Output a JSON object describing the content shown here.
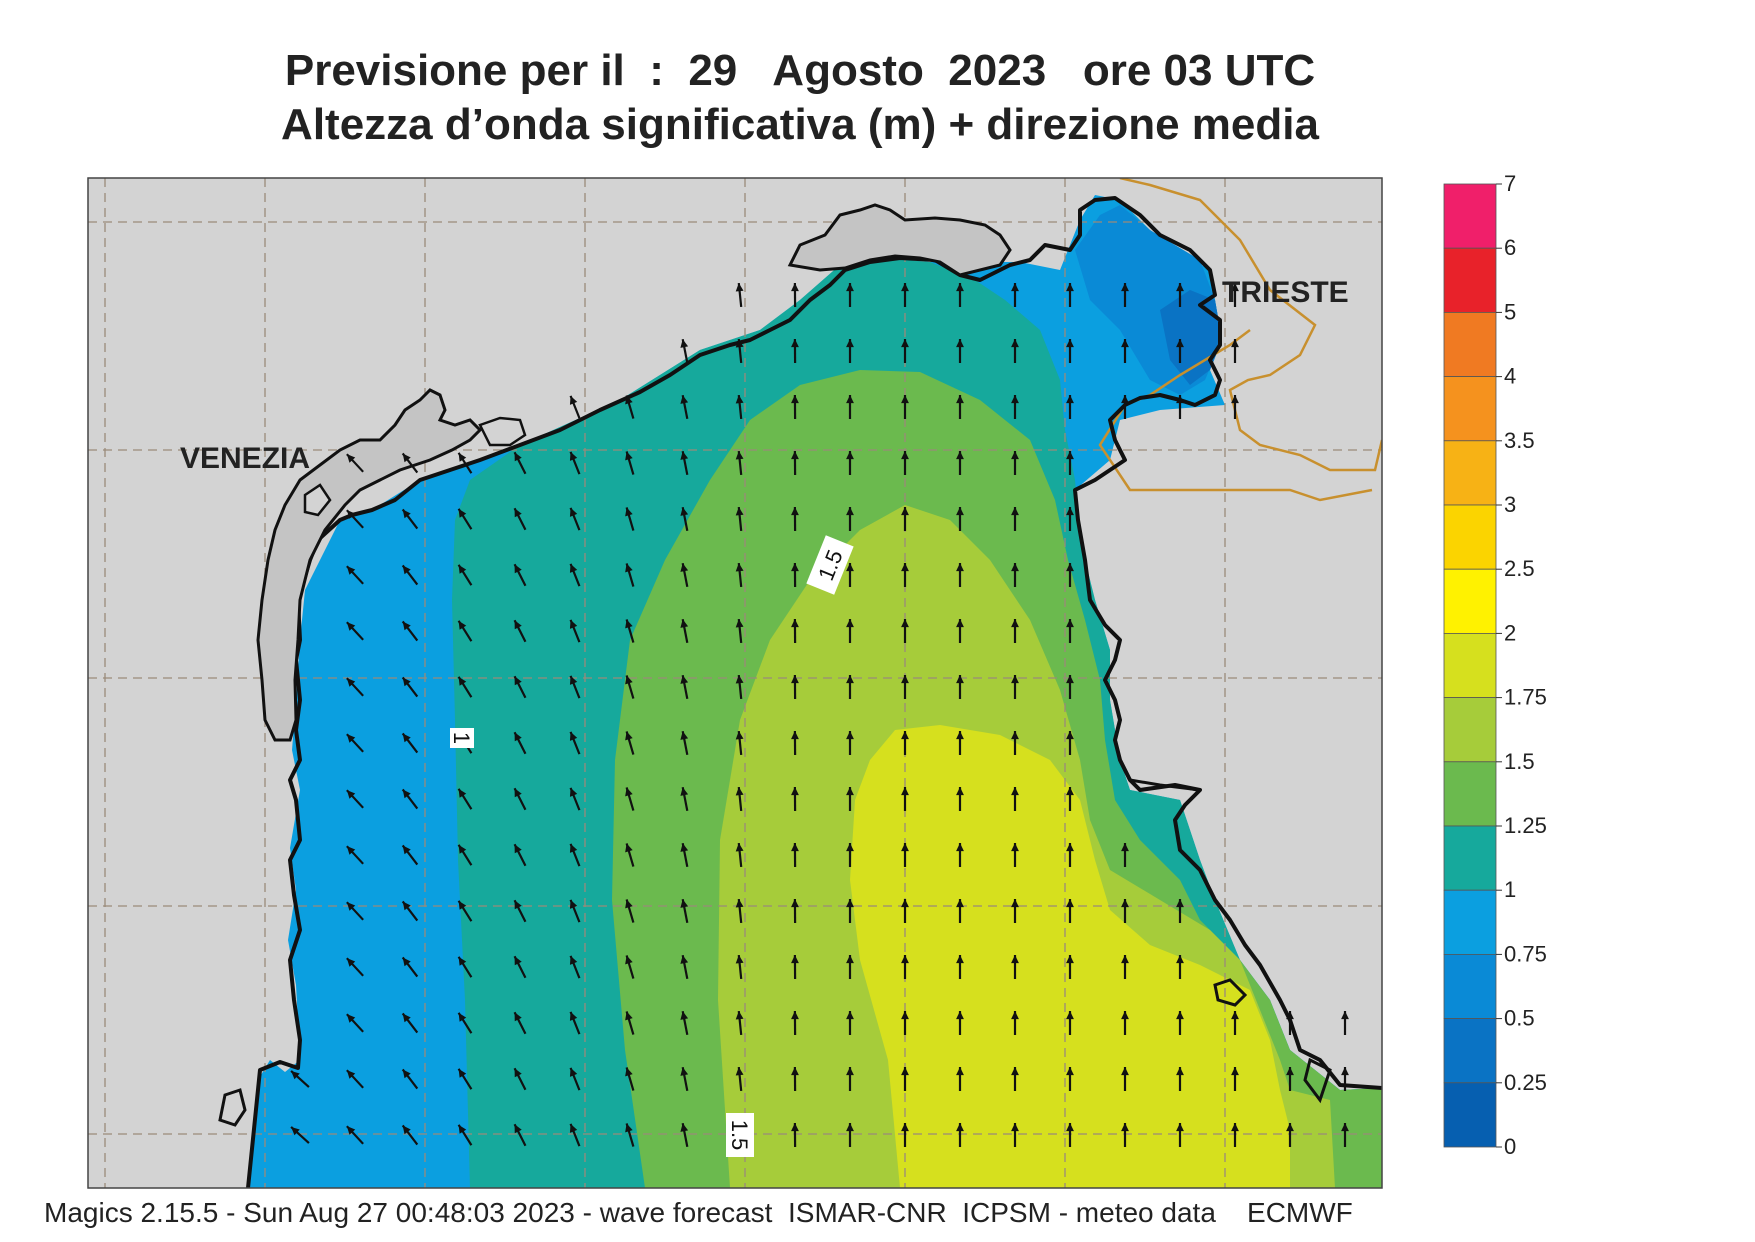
{
  "title": {
    "line1": "Previsione per il  :  29   Agosto  2023   ore 03 UTC",
    "line2": "Altezza d’onda significativa (m) + direzione media"
  },
  "cities": {
    "venezia": "VENEZIA",
    "trieste": "TRIESTE"
  },
  "contour_labels": {
    "label_a": "1.5",
    "label_b": "1",
    "label_c": "1.5"
  },
  "colorbar": {
    "labels": [
      "7",
      "6",
      "5",
      "4",
      "3.5",
      "3",
      "2.5",
      "2",
      "1.75",
      "1.5",
      "1.25",
      "1",
      "0.75",
      "0.5",
      "0.25",
      "0"
    ],
    "colors": [
      "#f01f6a",
      "#e8222a",
      "#f07a22",
      "#f5921e",
      "#f7b215",
      "#fbd400",
      "#fff200",
      "#d6e01e",
      "#a6cc3a",
      "#6bba4e",
      "#16a99c",
      "#0b9fe0",
      "#0a8ad6",
      "#0a73c4",
      "#065fb0"
    ]
  },
  "map_colors": {
    "land": "#d3d3d3",
    "coast": "#111111",
    "grid": "#9a8a7a",
    "border": "#c8902e"
  },
  "wave_direction_icon": "arrow-icon",
  "footer": "Magics 2.15.5 - Sun Aug 27 00:48:03 2023 - wave forecast  ISMAR-CNR  ICPSM - meteo data    ECMWF"
}
